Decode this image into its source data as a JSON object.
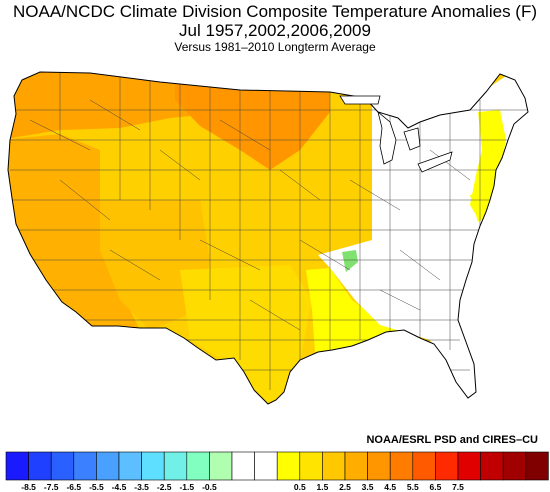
{
  "titles": {
    "line1": "NOAA/NCDC Climate Division Composite Temperature Anomalies (F)",
    "line2": "Jul   1957,2002,2006,2009",
    "line3": "Versus 1981–2010 Longterm Average"
  },
  "credit": "NOAA/ESRL PSD and CIRES–CU",
  "colorbar": {
    "labels": [
      "-8.5",
      "-7.5",
      "-6.5",
      "-5.5",
      "-4.5",
      "-3.5",
      "-2.5",
      "-1.5",
      "-0.5",
      "0.5",
      "1.5",
      "2.5",
      "3.5",
      "4.5",
      "5.5",
      "6.5",
      "7.5"
    ],
    "colors": [
      "#1a1aff",
      "#2040ff",
      "#2a60ff",
      "#3a80ff",
      "#4aa0ff",
      "#5cbfff",
      "#5fdfff",
      "#70f0e6",
      "#80ffc0",
      "#b0ffb0",
      "#ffffff",
      "#ffffff",
      "#ffff00",
      "#ffe400",
      "#ffc800",
      "#ffae00",
      "#ff9600",
      "#ff7c00",
      "#ff5a00",
      "#ff2a00",
      "#e00000",
      "#c00000",
      "#a00000",
      "#800000"
    ]
  },
  "map_regions": {
    "pacific_northwest": "#ffa300",
    "california_nevada": "#ffb000",
    "southwest": "#ffc200",
    "northern_plains": "#ff9600",
    "central_plains": "#ffd000",
    "texas_south": "#ffdc00",
    "gulf_coast": "#ffff00",
    "northeast_coast": "#ffff00",
    "mid_atlantic": "#ffff00",
    "great_lakes_east": "#ffffff",
    "southeast": "#ffffff",
    "arkansas_cool_spot": "#80e070"
  }
}
